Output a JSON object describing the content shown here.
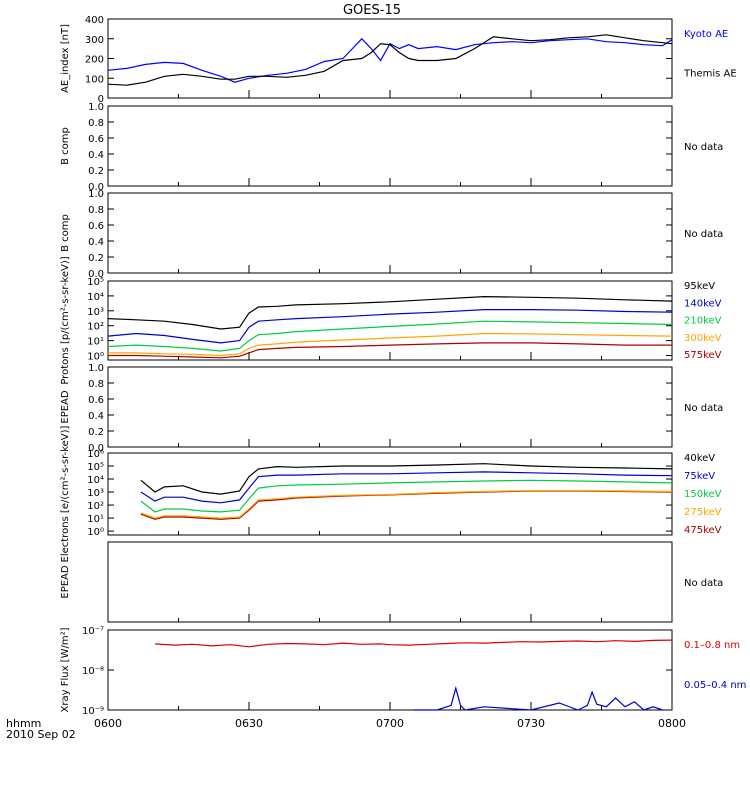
{
  "title": "GOES-15",
  "x_axis": {
    "ticks": [
      "0600",
      "0630",
      "0700",
      "0730",
      "0800"
    ],
    "unit_label": "hhmm",
    "date_label": "2010 Sep 02"
  },
  "chart_data": [
    {
      "type": "line",
      "ylabel": "AE_index [nT]",
      "ylim": [
        0,
        400
      ],
      "y_ticks": [
        "0",
        "100",
        "200",
        "300",
        "400"
      ],
      "x": [
        "0600",
        "0604",
        "0608",
        "0612",
        "0616",
        "0620",
        "0624",
        "0627",
        "0630",
        "0634",
        "0638",
        "0642",
        "0646",
        "0650",
        "0654",
        "0656",
        "0658",
        "0700",
        "0702",
        "0704",
        "0706",
        "0710",
        "0714",
        "0718",
        "0722",
        "0726",
        "0730",
        "0734",
        "0738",
        "0742",
        "0746",
        "0750",
        "0754",
        "0758",
        "0800"
      ],
      "series": [
        {
          "name": "Kyoto AE",
          "color": "#0000ff",
          "values": [
            140,
            150,
            170,
            180,
            175,
            140,
            110,
            80,
            100,
            115,
            125,
            145,
            185,
            200,
            300,
            250,
            190,
            275,
            250,
            270,
            250,
            260,
            245,
            270,
            280,
            285,
            280,
            290,
            295,
            300,
            285,
            280,
            270,
            265,
            295
          ]
        },
        {
          "name": "Themis AE",
          "color": "#000000",
          "values": [
            70,
            65,
            80,
            110,
            120,
            110,
            95,
            95,
            110,
            110,
            105,
            115,
            135,
            190,
            200,
            230,
            275,
            270,
            230,
            200,
            190,
            190,
            200,
            250,
            310,
            300,
            290,
            295,
            305,
            310,
            320,
            305,
            290,
            280,
            275
          ]
        }
      ]
    },
    {
      "type": "line",
      "ylabel": "B comp",
      "ylim": [
        0,
        1
      ],
      "y_ticks": [
        "0.0",
        "0.2",
        "0.4",
        "0.6",
        "0.8",
        "1.0"
      ],
      "series": [],
      "annotation": "No data"
    },
    {
      "type": "line",
      "ylabel": "B comp",
      "ylim": [
        0,
        1
      ],
      "y_ticks": [
        "0.0",
        "0.2",
        "0.4",
        "0.6",
        "0.8",
        "1.0"
      ],
      "series": [],
      "annotation": "No data"
    },
    {
      "type": "line",
      "ylabel": "Protons [p/(cm²-s-sr-keV)]",
      "ylim": [
        0.5,
        100000
      ],
      "log": true,
      "y_ticks": [
        "10⁰",
        "10¹",
        "10²",
        "10³",
        "10⁴",
        "10⁵"
      ],
      "x": [
        "0600",
        "0606",
        "0612",
        "0618",
        "0624",
        "0628",
        "0630",
        "0632",
        "0636",
        "0640",
        "0650",
        "0700",
        "0710",
        "0720",
        "0730",
        "0740",
        "0750",
        "0800"
      ],
      "series": [
        {
          "name": "575keV",
          "color": "#aa0000",
          "values": [
            1.0,
            1.0,
            0.9,
            0.8,
            0.7,
            0.9,
            1.5,
            2.5,
            3,
            3.5,
            4,
            5,
            6,
            7,
            7,
            6,
            5,
            5
          ]
        },
        {
          "name": "300keV",
          "color": "#ffa500",
          "values": [
            1.5,
            1.5,
            1.3,
            1.2,
            1.0,
            1.3,
            3,
            5,
            6,
            8,
            11,
            15,
            20,
            30,
            28,
            25,
            22,
            20
          ]
        },
        {
          "name": "210keV",
          "color": "#00cc44",
          "values": [
            4,
            5,
            4,
            3,
            2,
            3,
            10,
            25,
            30,
            40,
            60,
            90,
            130,
            200,
            180,
            160,
            140,
            120
          ]
        },
        {
          "name": "140keV",
          "color": "#0000cc",
          "values": [
            20,
            30,
            22,
            12,
            7,
            10,
            80,
            200,
            250,
            300,
            400,
            600,
            800,
            1200,
            1200,
            1100,
            900,
            800
          ]
        },
        {
          "name": "95keV",
          "color": "#000000",
          "values": [
            300,
            250,
            200,
            120,
            60,
            80,
            700,
            1800,
            2000,
            2500,
            3000,
            4000,
            6000,
            9000,
            8000,
            7000,
            5500,
            4500
          ]
        }
      ]
    },
    {
      "type": "line",
      "ylabel": "EPEAD",
      "ylim": [
        0,
        1
      ],
      "y_ticks": [
        "0.0",
        "0.2",
        "0.4",
        "0.6",
        "0.8",
        "1.0"
      ],
      "series": [],
      "annotation": "No data"
    },
    {
      "type": "line",
      "ylabel": "Electrons [e/(cm²-s-sr-keV)]",
      "ylim": [
        0.5,
        1000000
      ],
      "log": true,
      "y_ticks": [
        "10⁰",
        "10¹",
        "10²",
        "10³",
        "10⁴",
        "10⁵",
        "10⁶"
      ],
      "x": [
        "0607",
        "0610",
        "0612",
        "0616",
        "0620",
        "0624",
        "0628",
        "0630",
        "0632",
        "0636",
        "0640",
        "0650",
        "0700",
        "0710",
        "0720",
        "0730",
        "0740",
        "0750",
        "0800"
      ],
      "series": [
        {
          "name": "475keV",
          "color": "#aa0000",
          "values": [
            20,
            8,
            12,
            12,
            10,
            8,
            10,
            40,
            200,
            250,
            350,
            500,
            600,
            800,
            1000,
            1200,
            1200,
            1100,
            1000
          ]
        },
        {
          "name": "275keV",
          "color": "#ffa500",
          "values": [
            25,
            10,
            15,
            15,
            12,
            10,
            12,
            50,
            250,
            300,
            400,
            550,
            650,
            900,
            1100,
            1300,
            1300,
            1200,
            1100
          ]
        },
        {
          "name": "150keV",
          "color": "#00cc44",
          "values": [
            200,
            30,
            50,
            50,
            35,
            30,
            40,
            300,
            2000,
            3000,
            3500,
            4000,
            5000,
            6000,
            7000,
            8000,
            7000,
            6000,
            5000
          ]
        },
        {
          "name": "75keV",
          "color": "#0000cc",
          "values": [
            1000,
            200,
            400,
            400,
            200,
            150,
            250,
            2000,
            15000,
            20000,
            20000,
            25000,
            25000,
            30000,
            35000,
            30000,
            25000,
            20000,
            18000
          ]
        },
        {
          "name": "40keV",
          "color": "#000000",
          "values": [
            8000,
            1000,
            2500,
            3000,
            1000,
            700,
            1200,
            15000,
            60000,
            90000,
            80000,
            100000,
            100000,
            120000,
            150000,
            100000,
            80000,
            70000,
            60000
          ]
        }
      ]
    },
    {
      "type": "line",
      "ylabel": "EPEAD",
      "ylim": [
        0,
        1
      ],
      "y_ticks": [],
      "series": [],
      "annotation": "No data"
    },
    {
      "type": "line",
      "ylabel": "Xray Flux [W/m²]",
      "ylim": [
        1e-09,
        1e-07
      ],
      "log": true,
      "y_ticks": [
        "10⁻⁷",
        "10⁻⁸",
        "10⁻⁹"
      ],
      "series": [
        {
          "name": "0.1–0.8 nm",
          "color": "#dd0000",
          "x": [
            "0610",
            "0614",
            "0618",
            "0622",
            "0626",
            "0630",
            "0634",
            "0638",
            "0642",
            "0646",
            "0650",
            "0654",
            "0658",
            "0700",
            "0704",
            "0708",
            "0712",
            "0716",
            "0720",
            "0724",
            "0728",
            "0732",
            "0736",
            "0740",
            "0744",
            "0748",
            "0752",
            "0756",
            "0800"
          ],
          "values": [
            4.5e-08,
            4.2e-08,
            4.4e-08,
            4e-08,
            4.3e-08,
            3.8e-08,
            4.4e-08,
            4.6e-08,
            4.5e-08,
            4.3e-08,
            4.7e-08,
            4.4e-08,
            4.5e-08,
            4.3e-08,
            4.2e-08,
            4.4e-08,
            4.6e-08,
            4.8e-08,
            4.7e-08,
            4.9e-08,
            5.1e-08,
            5e-08,
            5.2e-08,
            5.3e-08,
            5.1e-08,
            5.4e-08,
            5.2e-08,
            5.5e-08,
            5.6e-08
          ]
        },
        {
          "name": "0.05–0.4 nm",
          "color": "#0000cc",
          "x": [
            "0705",
            "0710",
            "0713",
            "0714",
            "0715",
            "0716",
            "0720",
            "0730",
            "0736",
            "0740",
            "0742",
            "0743",
            "0744",
            "0746",
            "0748",
            "0750",
            "0752",
            "0754",
            "0756",
            "0758"
          ],
          "values": [
            1e-09,
            1e-09,
            1.3e-09,
            3.5e-09,
            1.3e-09,
            1e-09,
            1.2e-09,
            1e-09,
            1.5e-09,
            1e-09,
            1.3e-09,
            2.8e-09,
            1.4e-09,
            1.2e-09,
            2e-09,
            1.2e-09,
            1.6e-09,
            1e-09,
            1.2e-09,
            1e-09
          ]
        }
      ]
    }
  ]
}
